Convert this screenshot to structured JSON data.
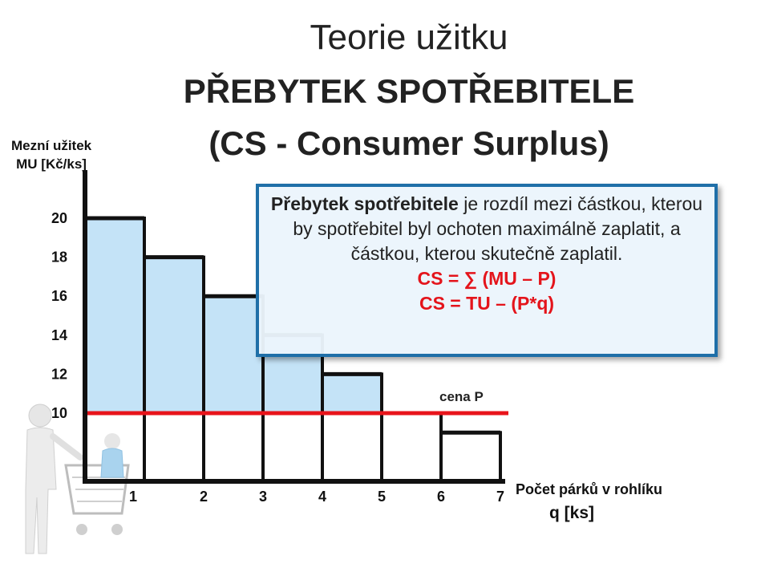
{
  "title": {
    "line1": "Teorie užitku",
    "line2": "PŘEBYTEK SPOTŘEBITELE",
    "line3": "(CS - Consumer Surplus)"
  },
  "info_box": {
    "term": "Přebytek spotřebitele",
    "definition": " je rozdíl mezi částkou, kterou by spotřebitel byl ochoten maximálně zaplatit, a částkou, kterou skutečně zaplatil.",
    "formula1": "CS = ∑ (MU – P)",
    "formula2": "CS = TU – (P*q)"
  },
  "chart_data": {
    "type": "bar",
    "ylabel_line1": "Mezní užitek",
    "ylabel_line2": "MU [Kč/ks]",
    "xlabel_line1": "Počet párků v rohlíku",
    "xlabel_line2": "q [ks]",
    "categories": [
      "1",
      "2",
      "3",
      "4",
      "5",
      "6",
      "7"
    ],
    "values": [
      20,
      18,
      16,
      14,
      12,
      10,
      9
    ],
    "y_ticks": [
      "20",
      "18",
      "16",
      "14",
      "12",
      "10"
    ],
    "price": 10,
    "price_label": "cena P",
    "surplus_color": "#c4e3f7",
    "price_line_color": "#e8141b",
    "step_color": "#111111"
  }
}
